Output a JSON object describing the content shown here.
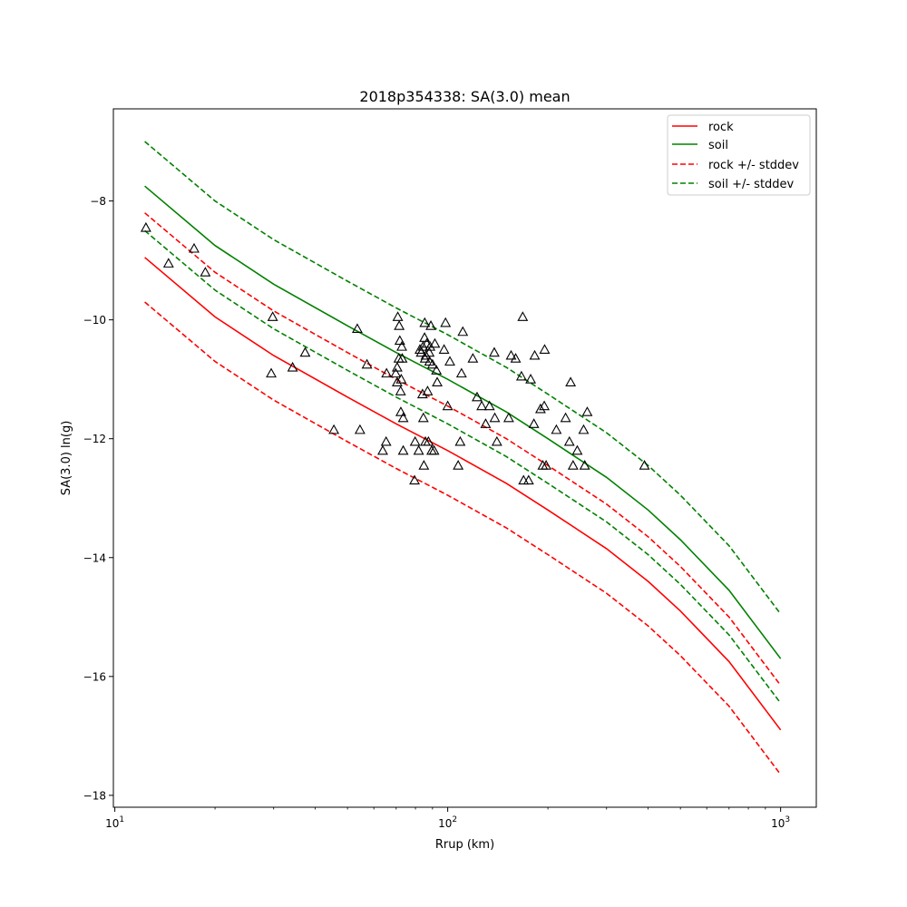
{
  "chart_data": {
    "type": "scatter",
    "title": "2018p354338: SA(3.0) mean",
    "xlabel": "Rrup (km)",
    "ylabel": "SA(3.0) ln(g)",
    "xscale": "log",
    "xlim": [
      9.9,
      1280
    ],
    "ylim": [
      -18.2,
      -6.45
    ],
    "xticks": [
      {
        "value": 10,
        "label": "10",
        "exp": "1"
      },
      {
        "value": 100,
        "label": "10",
        "exp": "2"
      },
      {
        "value": 1000,
        "label": "10",
        "exp": "3"
      }
    ],
    "yticks": [
      -8,
      -10,
      -12,
      -14,
      -16,
      -18
    ],
    "ytick_labels": [
      "−8",
      "−10",
      "−12",
      "−14",
      "−16",
      "−18"
    ],
    "grid": false,
    "legend_position": "top-right",
    "legend": [
      "rock",
      "soil",
      "rock +/- stddev",
      "soil +/- stddev"
    ],
    "colors": {
      "rock": "#ff0000",
      "soil": "#008000",
      "markers": "#000000"
    },
    "series": [
      {
        "name": "rock",
        "style": "solid",
        "color": "#ff0000",
        "x": [
          12.3,
          20,
          30,
          50,
          70,
          100,
          150,
          200,
          300,
          400,
          500,
          700,
          1000
        ],
        "y": [
          -8.95,
          -9.95,
          -10.6,
          -11.3,
          -11.75,
          -12.2,
          -12.75,
          -13.2,
          -13.85,
          -14.4,
          -14.9,
          -15.75,
          -16.9
        ]
      },
      {
        "name": "soil",
        "style": "solid",
        "color": "#008000",
        "x": [
          12.3,
          20,
          30,
          50,
          70,
          100,
          150,
          200,
          300,
          400,
          500,
          700,
          1000
        ],
        "y": [
          -7.75,
          -8.75,
          -9.4,
          -10.1,
          -10.55,
          -11.0,
          -11.55,
          -12.0,
          -12.65,
          -13.2,
          -13.7,
          -14.55,
          -15.7
        ]
      },
      {
        "name": "rock +/- stddev",
        "style": "dashed",
        "color": "#ff0000",
        "x": [
          12.3,
          20,
          30,
          50,
          70,
          100,
          150,
          200,
          300,
          400,
          500,
          700,
          1000
        ],
        "y": [
          -8.2,
          -9.2,
          -9.85,
          -10.55,
          -11.0,
          -11.45,
          -12.0,
          -12.45,
          -13.1,
          -13.65,
          -14.15,
          -15.0,
          -16.15
        ]
      },
      {
        "name": "rock +/- stddev",
        "style": "dashed",
        "color": "#ff0000",
        "x": [
          12.3,
          20,
          30,
          50,
          70,
          100,
          150,
          200,
          300,
          400,
          500,
          700,
          1000
        ],
        "y": [
          -9.7,
          -10.7,
          -11.35,
          -12.05,
          -12.5,
          -12.95,
          -13.5,
          -13.95,
          -14.6,
          -15.15,
          -15.65,
          -16.5,
          -17.65
        ]
      },
      {
        "name": "soil +/- stddev",
        "style": "dashed",
        "color": "#008000",
        "x": [
          12.3,
          20,
          30,
          50,
          70,
          100,
          150,
          200,
          300,
          400,
          500,
          700,
          1000
        ],
        "y": [
          -7.0,
          -8.0,
          -8.65,
          -9.35,
          -9.8,
          -10.25,
          -10.8,
          -11.25,
          -11.9,
          -12.45,
          -12.95,
          -13.8,
          -14.95
        ]
      },
      {
        "name": "soil +/- stddev",
        "style": "dashed",
        "color": "#008000",
        "x": [
          12.3,
          20,
          30,
          50,
          70,
          100,
          150,
          200,
          300,
          400,
          500,
          700,
          1000
        ],
        "y": [
          -8.5,
          -9.5,
          -10.15,
          -10.85,
          -11.3,
          -11.75,
          -12.3,
          -12.75,
          -13.4,
          -13.95,
          -14.45,
          -15.3,
          -16.45
        ]
      }
    ],
    "points": [
      {
        "x": 12.4,
        "y": -8.45
      },
      {
        "x": 14.5,
        "y": -9.05
      },
      {
        "x": 17.3,
        "y": -8.8
      },
      {
        "x": 18.7,
        "y": -9.2
      },
      {
        "x": 29.8,
        "y": -9.95
      },
      {
        "x": 29.5,
        "y": -10.9
      },
      {
        "x": 34.2,
        "y": -10.8
      },
      {
        "x": 37.3,
        "y": -10.55
      },
      {
        "x": 45.5,
        "y": -11.85
      },
      {
        "x": 53.5,
        "y": -10.15
      },
      {
        "x": 54.5,
        "y": -11.85
      },
      {
        "x": 57.2,
        "y": -10.75
      },
      {
        "x": 63.8,
        "y": -12.2
      },
      {
        "x": 65.3,
        "y": -12.05
      },
      {
        "x": 65.5,
        "y": -10.9
      },
      {
        "x": 69.8,
        "y": -10.9
      },
      {
        "x": 70.5,
        "y": -10.8
      },
      {
        "x": 70.5,
        "y": -11.05
      },
      {
        "x": 70.8,
        "y": -9.95
      },
      {
        "x": 71.3,
        "y": -10.65
      },
      {
        "x": 71.5,
        "y": -10.1
      },
      {
        "x": 71.8,
        "y": -10.35
      },
      {
        "x": 72.2,
        "y": -11.2
      },
      {
        "x": 72.3,
        "y": -11.55
      },
      {
        "x": 72.5,
        "y": -11.0
      },
      {
        "x": 72.8,
        "y": -10.45
      },
      {
        "x": 73.0,
        "y": -10.65
      },
      {
        "x": 73.5,
        "y": -11.65
      },
      {
        "x": 73.5,
        "y": -12.2
      },
      {
        "x": 79.5,
        "y": -12.7
      },
      {
        "x": 79.8,
        "y": -12.05
      },
      {
        "x": 81.8,
        "y": -12.2
      },
      {
        "x": 82.5,
        "y": -10.5
      },
      {
        "x": 83.2,
        "y": -10.55
      },
      {
        "x": 84.0,
        "y": -11.25
      },
      {
        "x": 84.3,
        "y": -10.45
      },
      {
        "x": 84.5,
        "y": -11.65
      },
      {
        "x": 84.8,
        "y": -12.45
      },
      {
        "x": 85.2,
        "y": -10.3
      },
      {
        "x": 85.3,
        "y": -10.05
      },
      {
        "x": 85.5,
        "y": -10.65
      },
      {
        "x": 85.7,
        "y": -12.05
      },
      {
        "x": 86.0,
        "y": -10.6
      },
      {
        "x": 86.5,
        "y": -10.4
      },
      {
        "x": 87.0,
        "y": -11.2
      },
      {
        "x": 87.5,
        "y": -12.05
      },
      {
        "x": 88.0,
        "y": -10.55
      },
      {
        "x": 88.2,
        "y": -10.7
      },
      {
        "x": 88.5,
        "y": -10.45
      },
      {
        "x": 89.0,
        "y": -10.1
      },
      {
        "x": 89.5,
        "y": -12.2
      },
      {
        "x": 90.0,
        "y": -10.75
      },
      {
        "x": 91.0,
        "y": -12.2
      },
      {
        "x": 91.5,
        "y": -10.4
      },
      {
        "x": 92.5,
        "y": -10.85
      },
      {
        "x": 93.0,
        "y": -11.05
      },
      {
        "x": 97.5,
        "y": -10.5
      },
      {
        "x": 98.5,
        "y": -10.05
      },
      {
        "x": 100.0,
        "y": -11.45
      },
      {
        "x": 101.5,
        "y": -10.7
      },
      {
        "x": 107.5,
        "y": -12.45
      },
      {
        "x": 109.0,
        "y": -12.05
      },
      {
        "x": 110.0,
        "y": -10.9
      },
      {
        "x": 111.0,
        "y": -10.2
      },
      {
        "x": 119.0,
        "y": -10.65
      },
      {
        "x": 122.5,
        "y": -11.3
      },
      {
        "x": 126.5,
        "y": -11.45
      },
      {
        "x": 130.0,
        "y": -11.75
      },
      {
        "x": 133.5,
        "y": -11.45
      },
      {
        "x": 138.5,
        "y": -11.65
      },
      {
        "x": 138.0,
        "y": -10.55
      },
      {
        "x": 140.5,
        "y": -12.05
      },
      {
        "x": 152.5,
        "y": -11.65
      },
      {
        "x": 155.0,
        "y": -10.6
      },
      {
        "x": 160.0,
        "y": -10.65
      },
      {
        "x": 166.5,
        "y": -10.95
      },
      {
        "x": 168.0,
        "y": -9.95
      },
      {
        "x": 169.0,
        "y": -12.7
      },
      {
        "x": 175.0,
        "y": -12.7
      },
      {
        "x": 177.5,
        "y": -11.0
      },
      {
        "x": 181.5,
        "y": -11.75
      },
      {
        "x": 182.5,
        "y": -10.6
      },
      {
        "x": 190.0,
        "y": -11.5
      },
      {
        "x": 193.0,
        "y": -12.45
      },
      {
        "x": 195.0,
        "y": -11.45
      },
      {
        "x": 195.5,
        "y": -10.5
      },
      {
        "x": 197.5,
        "y": -12.45
      },
      {
        "x": 212.0,
        "y": -11.85
      },
      {
        "x": 226.0,
        "y": -11.65
      },
      {
        "x": 232.0,
        "y": -12.05
      },
      {
        "x": 234.0,
        "y": -11.05
      },
      {
        "x": 238.0,
        "y": -12.45
      },
      {
        "x": 245.0,
        "y": -12.2
      },
      {
        "x": 256.0,
        "y": -11.85
      },
      {
        "x": 258.0,
        "y": -12.45
      },
      {
        "x": 262.5,
        "y": -11.55
      },
      {
        "x": 390.0,
        "y": -12.45
      }
    ]
  }
}
